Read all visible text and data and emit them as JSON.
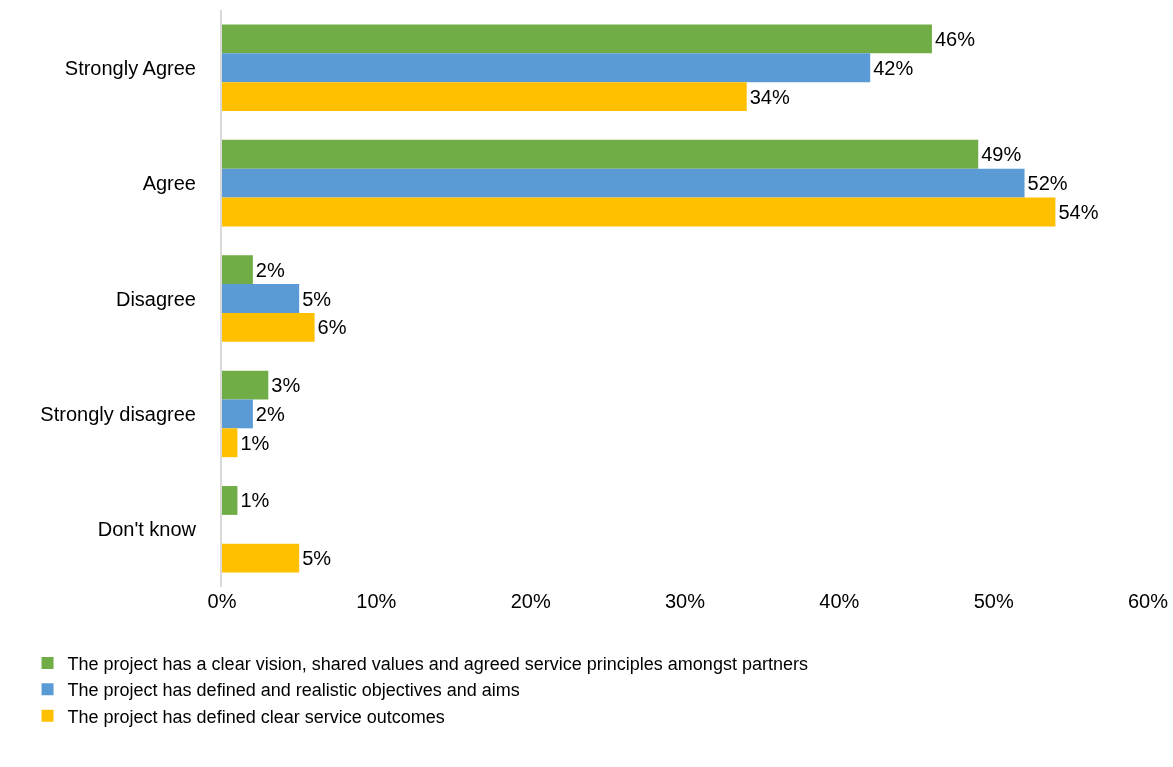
{
  "chart_data": {
    "type": "bar",
    "orientation": "horizontal",
    "categories": [
      "Strongly Agree",
      "Agree",
      "Disagree",
      "Strongly disagree",
      "Don't know"
    ],
    "series": [
      {
        "name": "The project has a clear vision, shared values and agreed service principles amongst partners",
        "color": "#70ad47",
        "values": [
          46,
          49,
          2,
          3,
          1
        ],
        "value_labels": [
          "46%",
          "49%",
          "2%",
          "3%",
          "1%"
        ]
      },
      {
        "name": "The project has defined and realistic objectives and aims",
        "color": "#5b9bd5",
        "values": [
          42,
          52,
          5,
          2,
          null
        ],
        "value_labels": [
          "42%",
          "52%",
          "5%",
          "2%",
          null
        ]
      },
      {
        "name": "The project has defined clear service outcomes",
        "color": "#ffc000",
        "values": [
          34,
          54,
          6,
          1,
          5
        ],
        "value_labels": [
          "34%",
          "54%",
          "6%",
          "1%",
          "5%"
        ]
      }
    ],
    "xlim": [
      0,
      60
    ],
    "xticks": [
      {
        "value": 0,
        "label": "0%"
      },
      {
        "value": 10,
        "label": "10%"
      },
      {
        "value": 20,
        "label": "20%"
      },
      {
        "value": 30,
        "label": "30%"
      },
      {
        "value": 40,
        "label": "40%"
      },
      {
        "value": 50,
        "label": "50%"
      },
      {
        "value": 60,
        "label": "60%"
      }
    ],
    "grid": false,
    "legend": "bottom"
  }
}
